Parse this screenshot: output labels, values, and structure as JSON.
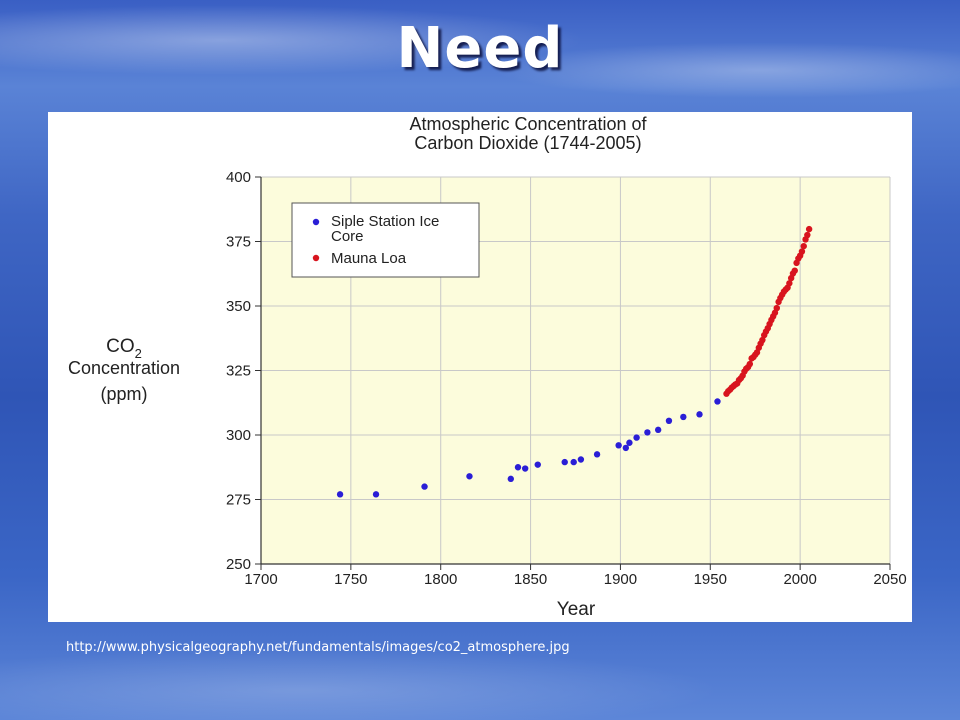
{
  "slide": {
    "title": "Need",
    "caption": "http://www.physicalgeography.net/fundamentals/images/co2_atmosphere.jpg"
  },
  "colors": {
    "plot_background": "#fcfcdc",
    "gridline": "#c8c8c8",
    "ice_core_point": "#2a1ed6",
    "mauna_loa_point": "#d8141e"
  },
  "chart_data": {
    "type": "scatter",
    "title_line1": "Atmospheric Concentration of",
    "title_line2": "Carbon Dioxide (1744-2005)",
    "xlabel": "Year",
    "ylabel_line1_main": "CO",
    "ylabel_line1_sub": "2",
    "ylabel_line2": "Concentration",
    "ylabel_line3": "(ppm)",
    "xlim": [
      1700,
      2050
    ],
    "ylim": [
      250,
      400
    ],
    "xticks": [
      1700,
      1750,
      1800,
      1850,
      1900,
      1950,
      2000,
      2050
    ],
    "yticks": [
      250,
      275,
      300,
      325,
      350,
      375,
      400
    ],
    "grid": true,
    "legend_position": "top-left",
    "series": [
      {
        "name_line1": "Siple Station Ice",
        "name_line2": "Core",
        "color": "#2a1ed6",
        "points": [
          [
            1744,
            277
          ],
          [
            1764,
            277
          ],
          [
            1791,
            280
          ],
          [
            1816,
            284
          ],
          [
            1839,
            283
          ],
          [
            1843,
            287.5
          ],
          [
            1847,
            287
          ],
          [
            1854,
            288.5
          ],
          [
            1869,
            289.5
          ],
          [
            1874,
            289.5
          ],
          [
            1878,
            290.5
          ],
          [
            1887,
            292.5
          ],
          [
            1899,
            296
          ],
          [
            1903,
            295
          ],
          [
            1905,
            297
          ],
          [
            1909,
            299
          ],
          [
            1915,
            301
          ],
          [
            1921,
            302
          ],
          [
            1927,
            305.5
          ],
          [
            1935,
            307
          ],
          [
            1944,
            308
          ],
          [
            1954,
            313
          ]
        ]
      },
      {
        "name": "Mauna Loa",
        "color": "#d8141e",
        "points": [
          [
            1959,
            316
          ],
          [
            1960,
            317
          ],
          [
            1961,
            317.6
          ],
          [
            1962,
            318.4
          ],
          [
            1963,
            319
          ],
          [
            1964,
            319.6
          ],
          [
            1965,
            320
          ],
          [
            1966,
            321.3
          ],
          [
            1967,
            322
          ],
          [
            1968,
            323
          ],
          [
            1969,
            324.6
          ],
          [
            1970,
            325.7
          ],
          [
            1971,
            326.3
          ],
          [
            1972,
            327.5
          ],
          [
            1973,
            329.7
          ],
          [
            1974,
            330.2
          ],
          [
            1975,
            331.1
          ],
          [
            1976,
            332
          ],
          [
            1977,
            333.8
          ],
          [
            1978,
            335.4
          ],
          [
            1979,
            336.8
          ],
          [
            1980,
            338.7
          ],
          [
            1981,
            340.1
          ],
          [
            1982,
            341.4
          ],
          [
            1983,
            343
          ],
          [
            1984,
            344.6
          ],
          [
            1985,
            346
          ],
          [
            1986,
            347.4
          ],
          [
            1987,
            349.2
          ],
          [
            1988,
            351.6
          ],
          [
            1989,
            353.1
          ],
          [
            1990,
            354.4
          ],
          [
            1991,
            355.6
          ],
          [
            1992,
            356.4
          ],
          [
            1993,
            357.1
          ],
          [
            1994,
            358.8
          ],
          [
            1995,
            360.8
          ],
          [
            1996,
            362.6
          ],
          [
            1997,
            363.7
          ],
          [
            1998,
            366.7
          ],
          [
            1999,
            368.4
          ],
          [
            2000,
            369.5
          ],
          [
            2001,
            371.1
          ],
          [
            2002,
            373.2
          ],
          [
            2003,
            375.8
          ],
          [
            2004,
            377.5
          ],
          [
            2005,
            379.8
          ]
        ]
      }
    ]
  }
}
